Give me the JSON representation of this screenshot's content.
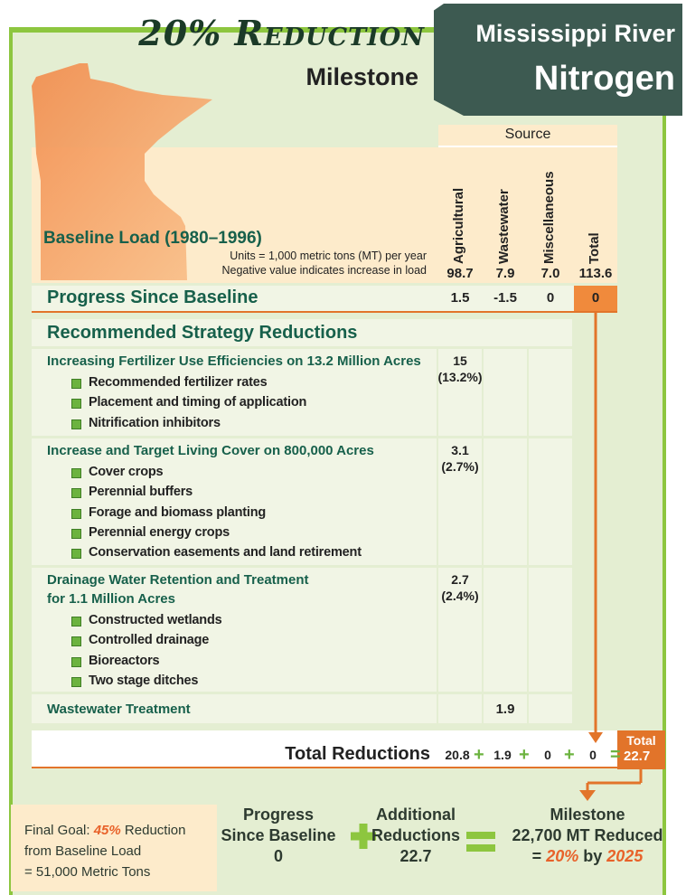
{
  "header": {
    "title": "20% Reduction",
    "subtitle": "Milestone",
    "banner_line1": "Mississippi River",
    "banner_line2": "Nitrogen"
  },
  "table": {
    "source_label": "Source",
    "columns": [
      "Agricultural",
      "Wastewater",
      "Miscellaneous",
      "Total"
    ],
    "baseline": {
      "label": "Baseline Load (1980–1996)",
      "units_note": "Units = 1,000 metric tons (MT) per year",
      "negative_note": "Negative value indicates increase in load",
      "values": [
        "98.7",
        "7.9",
        "7.0",
        "113.6"
      ]
    },
    "progress": {
      "label": "Progress Since Baseline",
      "values": [
        "1.5",
        "-1.5",
        "0",
        "0"
      ]
    },
    "strategies": {
      "heading": "Recommended Strategy Reductions",
      "groups": [
        {
          "title": [
            "Increasing Fertilizer Use Efficiencies on 13.2 Million Acres"
          ],
          "agricultural": "15",
          "percent": "(13.2%)",
          "items": [
            "Recommended fertilizer rates",
            "Placement and timing of application",
            "Nitrification inhibitors"
          ]
        },
        {
          "title": [
            "Increase and Target Living Cover on 800,000 Acres"
          ],
          "agricultural": "3.1",
          "percent": "(2.7%)",
          "items": [
            "Cover crops",
            "Perennial buffers",
            "Forage and biomass planting",
            "Perennial energy crops",
            "Conservation easements and land retirement"
          ]
        },
        {
          "title": [
            "Drainage Water Retention and Treatment",
            "for 1.1 Million Acres"
          ],
          "agricultural": "2.7",
          "percent": "(2.4%)",
          "items": [
            "Constructed wetlands",
            "Controlled drainage",
            "Bioreactors",
            "Two stage ditches"
          ]
        }
      ]
    },
    "wastewater_row": {
      "label": "Wastewater Treatment",
      "wastewater": "1.9"
    },
    "totals": {
      "label": "Total Reductions",
      "values": [
        "20.8",
        "1.9",
        "0",
        "0"
      ],
      "plus": "+",
      "equals": "=",
      "total_label": "Total",
      "total_value": "22.7"
    }
  },
  "footer": {
    "final_goal": {
      "prefix": "Final Goal:",
      "percent": "45%",
      "suffix": "Reduction",
      "line2": "from Baseline Load",
      "line3": "= 51,000 Metric Tons"
    },
    "progress": {
      "line1": "Progress",
      "line2": "Since Baseline",
      "value": "0"
    },
    "additional": {
      "line1": "Additional",
      "line2": "Reductions",
      "value": "22.7"
    },
    "milestone": {
      "line1": "Milestone",
      "line2": "22,700 MT Reduced",
      "prefix": "=",
      "percent": "20%",
      "by": "by",
      "year": "2025"
    }
  }
}
